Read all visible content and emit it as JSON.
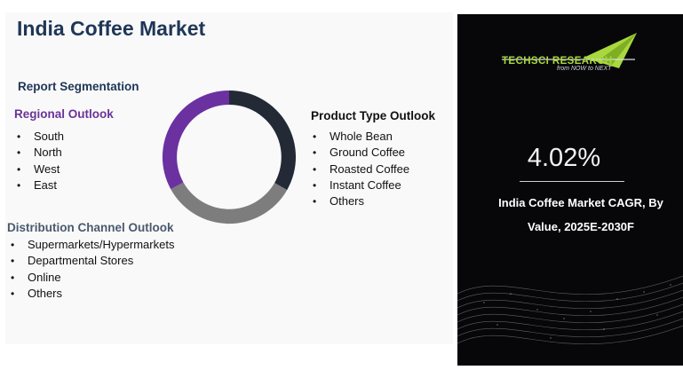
{
  "title": "India Coffee Market",
  "segmentation_heading": "Report Segmentation",
  "regional": {
    "heading": "Regional Outlook",
    "items": [
      "South",
      "North",
      "West",
      "East"
    ]
  },
  "product_type": {
    "heading": "Product Type Outlook",
    "items": [
      "Whole Bean",
      "Ground Coffee",
      "Roasted Coffee",
      "Instant Coffee",
      "Others"
    ]
  },
  "distribution": {
    "heading": "Distribution Channel Outlook",
    "items": [
      "Supermarkets/Hypermarkets",
      "Departmental Stores",
      "Online",
      "Others"
    ]
  },
  "donut": {
    "colors": [
      "#232a36",
      "#7d7d7d",
      "#6b31a0"
    ]
  },
  "brand": {
    "logo_text": "TECHSCI RESEARCH",
    "tagline": "from NOW to NEXT",
    "accent": "#a8d83d"
  },
  "cagr": {
    "value": "4.02%",
    "caption": "India Coffee Market CAGR, By Value, 2025E-2030F"
  }
}
